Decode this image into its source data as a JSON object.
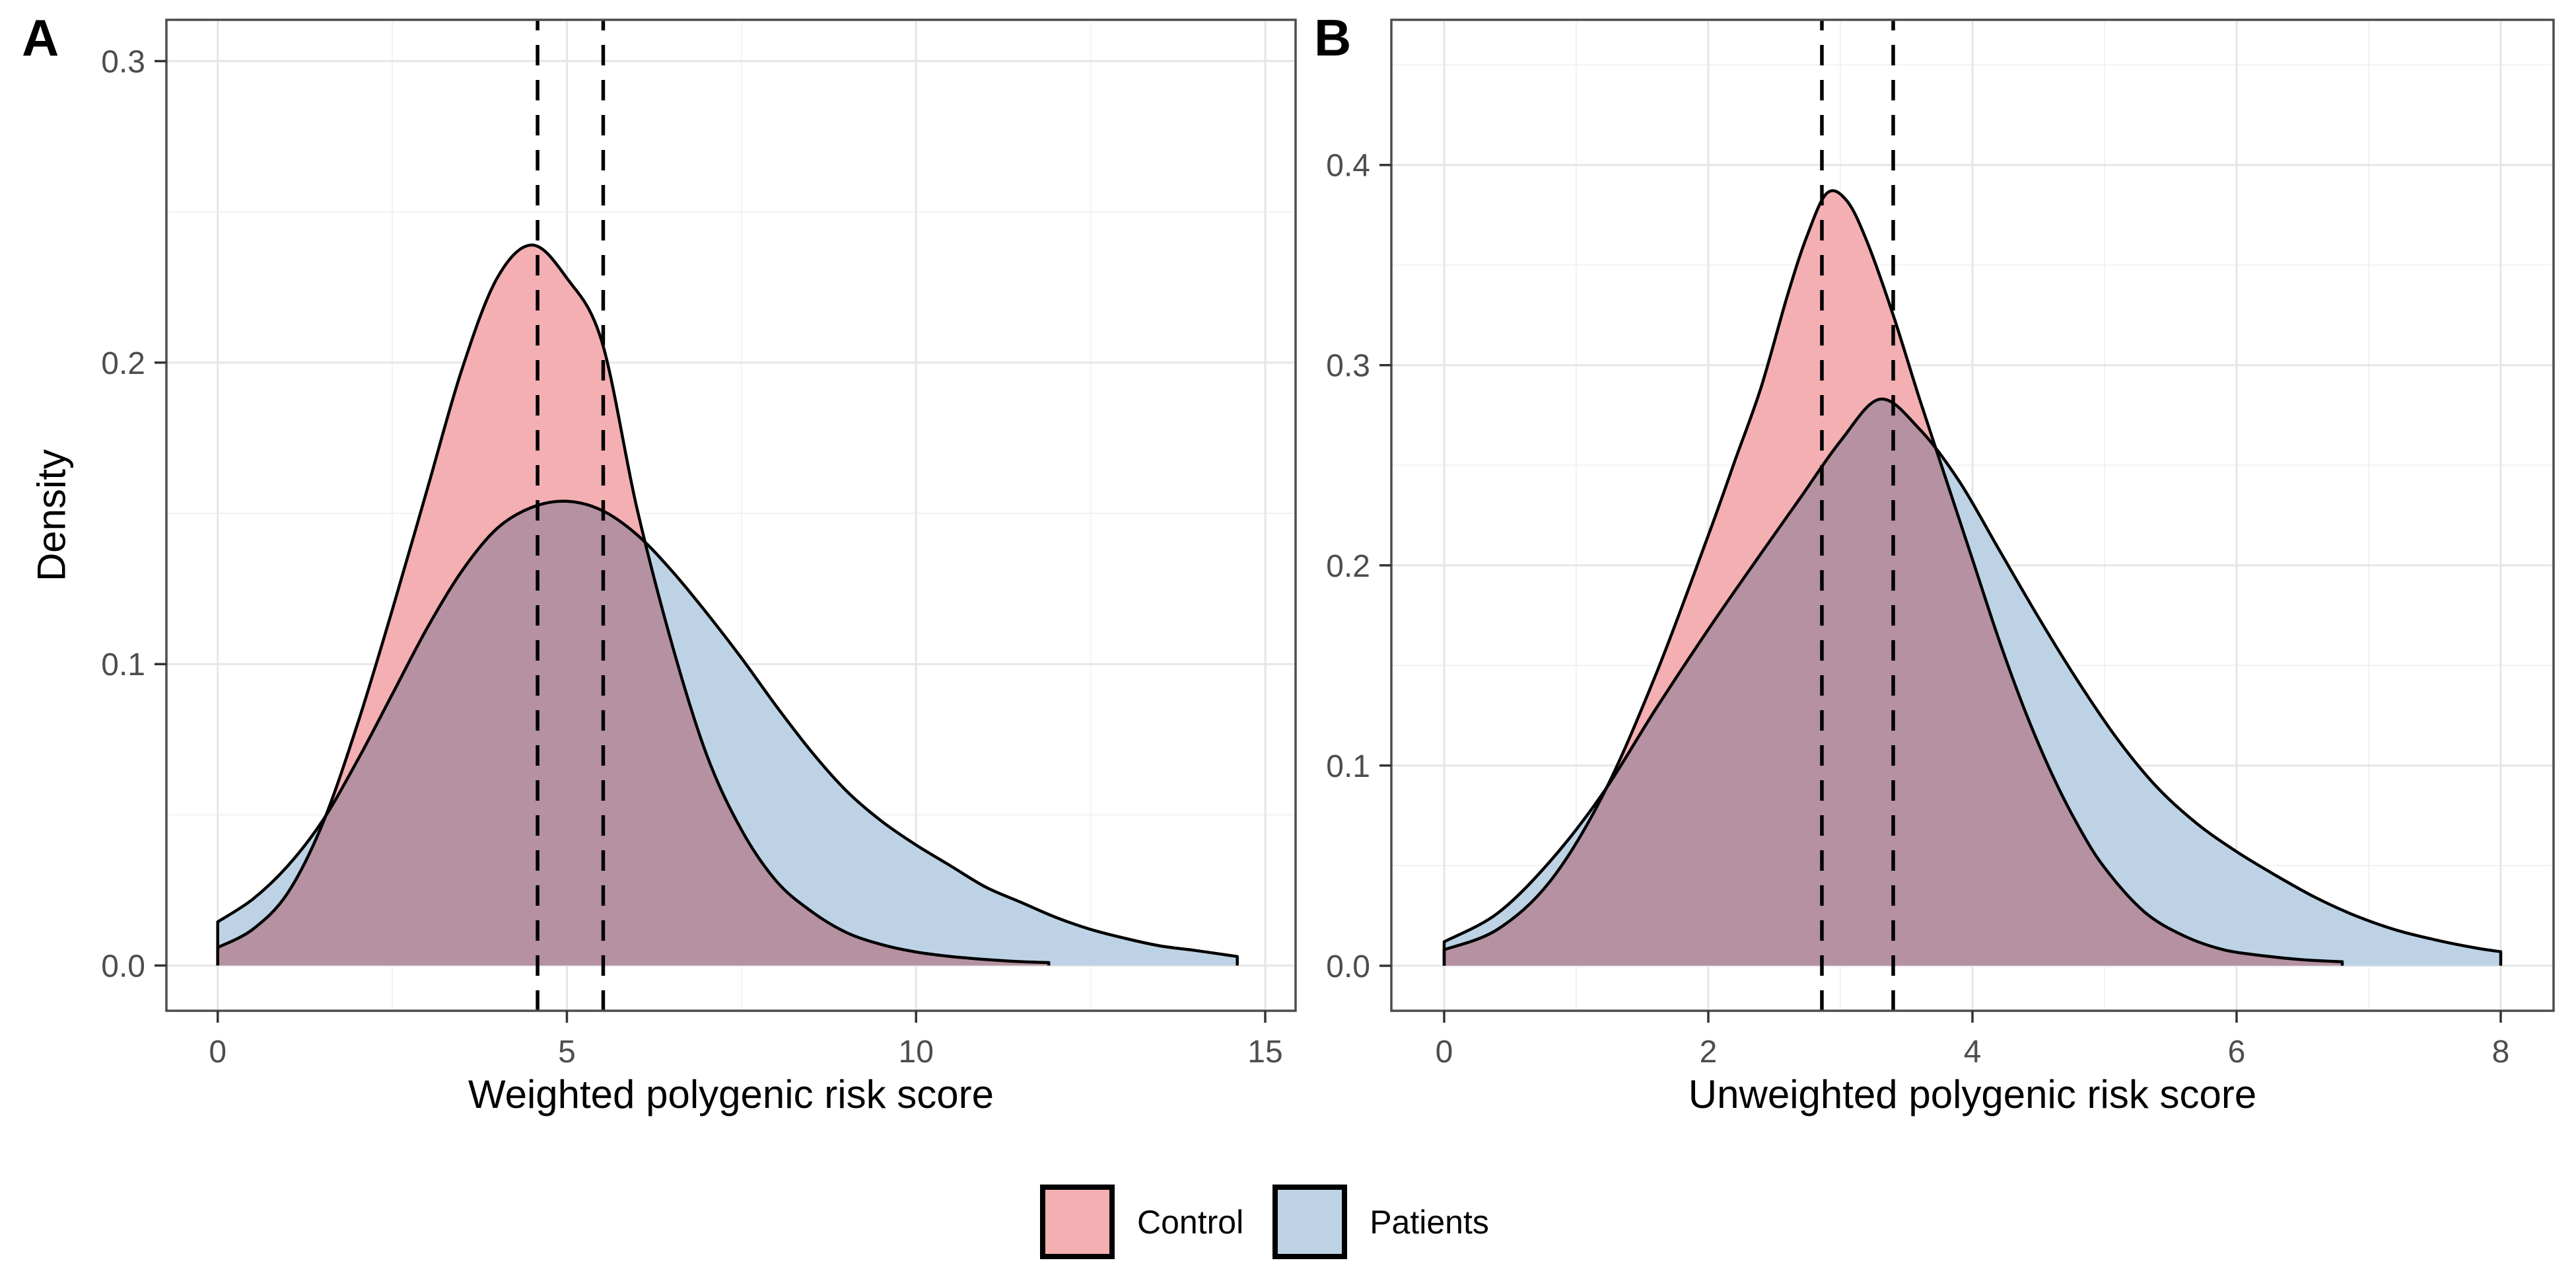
{
  "figure": {
    "background": "#ffffff"
  },
  "chart_data": {
    "type": "area",
    "description": "Two-panel overlapping kernel density plot comparing Control and Patients polygenic risk score distributions, with dashed vertical lines at group means",
    "legend_position": "bottom-center",
    "grid": "major and minor gridlines on, ggplot theme_bw style",
    "panels": [
      {
        "label": "A",
        "x_title": "Weighted polygenic risk score",
        "y_title": "Density",
        "x_domain": [
          -0.735,
          15.435
        ],
        "y_domain": [
          -0.015,
          0.3137
        ],
        "x_ticks": [
          0,
          5,
          10,
          15
        ],
        "x_minor_ticks": [
          2.5,
          7.5,
          12.5
        ],
        "y_ticks": [
          0.0,
          0.1,
          0.2,
          0.3
        ],
        "y_minor_ticks": [
          0.05,
          0.15,
          0.25
        ],
        "mean_lines": [
          4.58,
          5.52
        ],
        "series": [
          {
            "name": "Control",
            "x": [
              0,
              0.5,
              1,
              1.5,
              2,
              2.5,
              3,
              3.5,
              4,
              4.5,
              5,
              5.5,
              6,
              6.5,
              7,
              7.5,
              8,
              8.5,
              9,
              9.5,
              10,
              10.5,
              11,
              11.5,
              11.9
            ],
            "y": [
              0.006,
              0.012,
              0.024,
              0.047,
              0.08,
              0.118,
              0.158,
              0.198,
              0.228,
              0.239,
              0.228,
              0.207,
              0.152,
              0.107,
              0.07,
              0.045,
              0.028,
              0.018,
              0.011,
              0.007,
              0.0045,
              0.003,
              0.002,
              0.0013,
              0.001
            ]
          },
          {
            "name": "Patients",
            "x": [
              0,
              0.5,
              1,
              1.5,
              2,
              2.5,
              3,
              3.5,
              4,
              4.5,
              5,
              5.5,
              6,
              6.5,
              7,
              7.5,
              8,
              8.5,
              9,
              9.5,
              10,
              10.5,
              11,
              11.5,
              12,
              12.5,
              13,
              13.5,
              14,
              14.6
            ],
            "y": [
              0.0145,
              0.022,
              0.033,
              0.048,
              0.068,
              0.09,
              0.112,
              0.131,
              0.145,
              0.152,
              0.154,
              0.151,
              0.143,
              0.131,
              0.117,
              0.102,
              0.086,
              0.071,
              0.058,
              0.048,
              0.04,
              0.033,
              0.026,
              0.021,
              0.016,
              0.012,
              0.009,
              0.0065,
              0.005,
              0.003
            ]
          }
        ]
      },
      {
        "label": "B",
        "x_title": "Unweighted polygenic risk score",
        "y_title": "",
        "x_domain": [
          -0.4,
          8.4
        ],
        "y_domain": [
          -0.0225,
          0.4725
        ],
        "x_ticks": [
          0,
          2,
          4,
          6,
          8
        ],
        "x_minor_ticks": [
          1,
          3,
          5,
          7
        ],
        "y_ticks": [
          0.0,
          0.1,
          0.2,
          0.3,
          0.4
        ],
        "y_minor_ticks": [
          0.05,
          0.15,
          0.25,
          0.35,
          0.45
        ],
        "mean_lines": [
          2.86,
          3.4
        ],
        "series": [
          {
            "name": "Control",
            "x": [
              0,
              0.4,
              0.8,
              1.2,
              1.6,
              2.0,
              2.2,
              2.4,
              2.6,
              2.75,
              2.9,
              3.05,
              3.2,
              3.4,
              3.6,
              3.8,
              4.0,
              4.2,
              4.4,
              4.6,
              4.8,
              5.0,
              5.3,
              5.6,
              5.9,
              6.2,
              6.5,
              6.8
            ],
            "y": [
              0.008,
              0.018,
              0.042,
              0.085,
              0.145,
              0.215,
              0.252,
              0.289,
              0.335,
              0.365,
              0.386,
              0.382,
              0.362,
              0.325,
              0.283,
              0.243,
              0.203,
              0.163,
              0.127,
              0.096,
              0.07,
              0.049,
              0.027,
              0.015,
              0.008,
              0.005,
              0.003,
              0.002
            ]
          },
          {
            "name": "Patients",
            "x": [
              0,
              0.4,
              0.8,
              1.2,
              1.6,
              2.0,
              2.4,
              2.7,
              3.0,
              3.3,
              3.6,
              3.9,
              4.2,
              4.5,
              4.8,
              5.1,
              5.4,
              5.7,
              6.0,
              6.3,
              6.6,
              6.9,
              7.2,
              7.5,
              7.8,
              8.0
            ],
            "y": [
              0.012,
              0.026,
              0.052,
              0.086,
              0.128,
              0.168,
              0.206,
              0.234,
              0.262,
              0.283,
              0.268,
              0.242,
              0.208,
              0.174,
              0.142,
              0.113,
              0.089,
              0.071,
              0.057,
              0.045,
              0.034,
              0.025,
              0.018,
              0.013,
              0.009,
              0.007
            ]
          }
        ]
      }
    ],
    "legend": [
      {
        "label": "Control"
      },
      {
        "label": "Patients"
      }
    ]
  },
  "style": {
    "control_fill": "#F4AFB3",
    "patients_fill": "#BDD3E5",
    "outline_color": "#000000",
    "mean_line_color": "#000000",
    "panel_border": "#4D4D4D",
    "grid_major": "#E6E6E6",
    "grid_minor": "#F2F2F2",
    "tick_color": "#333333",
    "tick_label_color": "#4D4D4D"
  }
}
